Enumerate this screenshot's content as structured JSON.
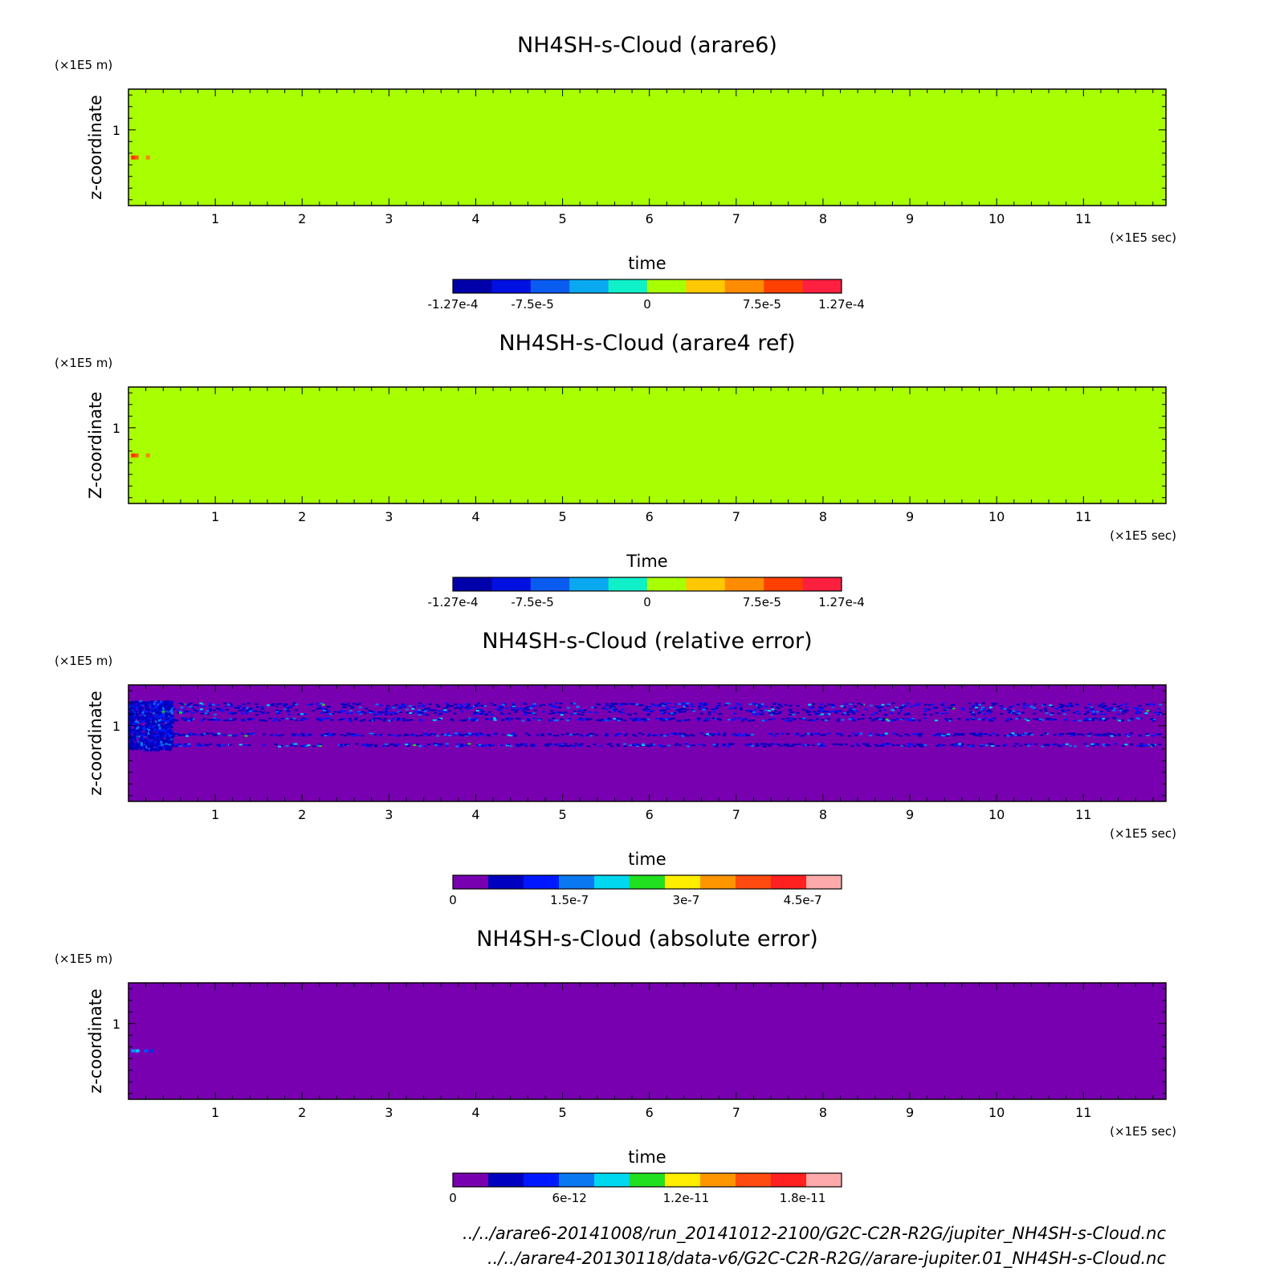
{
  "chart_data": [
    {
      "type": "heatmap",
      "title": "NH4SH-s-Cloud (arare6)",
      "xlabel": "time",
      "ylabel": "z-coordinate",
      "x_unit": "(×1E5 sec)",
      "y_unit": "(×1E5 m)",
      "xlim": [
        0,
        11.95
      ],
      "ylim": [
        0.35,
        1.35
      ],
      "x_ticks": [
        1,
        2,
        3,
        4,
        5,
        6,
        7,
        8,
        9,
        10,
        11
      ],
      "y_ticks": [
        1
      ],
      "field_color": "#a8ff00",
      "feature": "small positive values near x≈0.05–0.2, z≈0.77",
      "colorbar": {
        "colors": [
          "#0000aa",
          "#0010e0",
          "#0a5cf0",
          "#0aa8f0",
          "#10f0c8",
          "#a8ff00",
          "#ffc800",
          "#ff8c00",
          "#ff4000",
          "#ff2040"
        ],
        "ticks": [
          "-1.27e-4",
          "-7.5e-5",
          "0",
          "7.5e-5",
          "1.27e-4"
        ],
        "range": [
          -0.000127,
          0.000127
        ]
      }
    },
    {
      "type": "heatmap",
      "title": "NH4SH-s-Cloud (arare4 ref)",
      "xlabel": "Time",
      "ylabel": "Z-coordinate",
      "x_unit": "(×1E5 sec)",
      "y_unit": "(×1E5 m)",
      "xlim": [
        0,
        11.95
      ],
      "ylim": [
        0.35,
        1.35
      ],
      "x_ticks": [
        1,
        2,
        3,
        4,
        5,
        6,
        7,
        8,
        9,
        10,
        11
      ],
      "y_ticks": [
        1
      ],
      "field_color": "#a8ff00",
      "feature": "small positive values near x≈0.05–0.2, z≈0.77",
      "colorbar": {
        "colors": [
          "#0000aa",
          "#0010e0",
          "#0a5cf0",
          "#0aa8f0",
          "#10f0c8",
          "#a8ff00",
          "#ffc800",
          "#ff8c00",
          "#ff4000",
          "#ff2040"
        ],
        "ticks": [
          "-1.27e-4",
          "-7.5e-5",
          "0",
          "7.5e-5",
          "1.27e-4"
        ],
        "range": [
          -0.000127,
          0.000127
        ]
      }
    },
    {
      "type": "heatmap",
      "title": "NH4SH-s-Cloud (relative error)",
      "xlabel": "time",
      "ylabel": "z-coordinate",
      "x_unit": "(×1E5 sec)",
      "y_unit": "(×1E5 m)",
      "xlim": [
        0,
        11.95
      ],
      "ylim": [
        0.35,
        1.35
      ],
      "x_ticks": [
        1,
        2,
        3,
        4,
        5,
        6,
        7,
        8,
        9,
        10,
        11
      ],
      "y_ticks": [
        1
      ],
      "field_color": "#7800b0",
      "feature": "noisy error bands at z≈1.15, 1.06, 0.93, 0.84 across all time; dense noise for x<0.5 between z≈0.8 and 1.2",
      "colorbar": {
        "colors": [
          "#7800b0",
          "#0000c0",
          "#0018ff",
          "#0a78f0",
          "#00d8f0",
          "#20e020",
          "#ffee00",
          "#ff9600",
          "#ff4a10",
          "#ff2020",
          "#ffaaaa"
        ],
        "ticks": [
          "0",
          "1.5e-7",
          "3e-7",
          "4.5e-7"
        ],
        "range": [
          0,
          5e-07
        ]
      }
    },
    {
      "type": "heatmap",
      "title": "NH4SH-s-Cloud (absolute error)",
      "xlabel": "time",
      "ylabel": "z-coordinate",
      "x_unit": "(×1E5 sec)",
      "y_unit": "(×1E5 m)",
      "xlim": [
        0,
        11.95
      ],
      "ylim": [
        0.35,
        1.35
      ],
      "x_ticks": [
        1,
        2,
        3,
        4,
        5,
        6,
        7,
        8,
        9,
        10,
        11
      ],
      "y_ticks": [
        1
      ],
      "field_color": "#7800b0",
      "feature": "small error near x≈0.05–0.25, z≈0.77",
      "colorbar": {
        "colors": [
          "#7800b0",
          "#0000c0",
          "#0018ff",
          "#0a78f0",
          "#00d8f0",
          "#20e020",
          "#ffee00",
          "#ff9600",
          "#ff4a10",
          "#ff2020",
          "#ffaaaa"
        ],
        "ticks": [
          "0",
          "6e-12",
          "1.2e-11",
          "1.8e-11"
        ],
        "range": [
          0,
          2e-11
        ]
      }
    }
  ],
  "footer": {
    "line1": "../../arare6-20141008/run_20141012-2100/G2C-C2R-R2G/jupiter_NH4SH-s-Cloud.nc",
    "line2": "../../arare4-20130118/data-v6/G2C-C2R-R2G//arare-jupiter.01_NH4SH-s-Cloud.nc"
  }
}
